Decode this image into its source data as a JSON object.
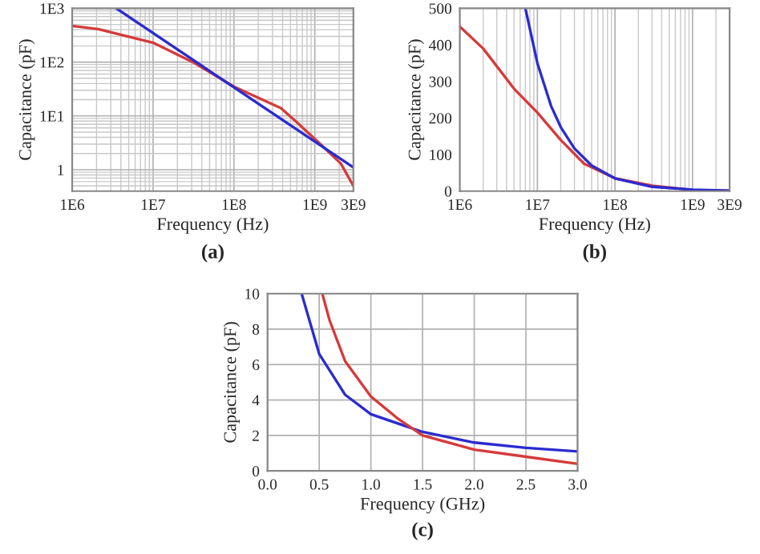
{
  "chart_data": [
    {
      "type": "line",
      "xlabel": "Frequency (Hz)",
      "ylabel": "Capacitance (pF)",
      "annotations": [
        "(a)"
      ],
      "log": "xy",
      "grid": true,
      "xlim": [
        1000000,
        3000000000
      ],
      "xticks": [
        {
          "value": 1000000,
          "label": "1E6"
        },
        {
          "value": 10000000,
          "label": "1E7"
        },
        {
          "value": 100000000,
          "label": "1E8"
        },
        {
          "value": 1000000000,
          "label": "1E9"
        },
        {
          "value": 3000000000,
          "label": "3E9"
        }
      ],
      "ylim": [
        0.4,
        1000
      ],
      "yticks": [
        1,
        {
          "value": 10,
          "label": "1E1"
        },
        {
          "value": 100,
          "label": "1E2"
        },
        {
          "value": 1000,
          "label": "1E3"
        }
      ],
      "series": [
        {
          "color": "#d63a3a",
          "x": [
            1000000,
            2100000,
            10000000,
            33000000,
            100000000,
            380000000,
            600000000,
            1200000000,
            2100000000,
            3000000000
          ],
          "values": [
            470,
            410,
            230,
            95,
            35,
            14,
            7.6,
            2.9,
            1.3,
            0.5
          ]
        },
        {
          "color": "#2b2bcf",
          "x": [
            3500000,
            3000000000
          ],
          "values": [
            1000,
            1.1
          ]
        }
      ]
    },
    {
      "type": "line",
      "xlabel": "Frequency (Hz)",
      "ylabel": "Capacitance (pF)",
      "annotations": [
        "(b)"
      ],
      "log": "x",
      "grid": "x",
      "xlim": [
        1000000,
        3000000000
      ],
      "xticks": [
        {
          "value": 1000000,
          "label": "1E6"
        },
        {
          "value": 10000000,
          "label": "1E7"
        },
        {
          "value": 100000000,
          "label": "1E8"
        },
        {
          "value": 1000000000,
          "label": "1E9"
        },
        {
          "value": 3000000000,
          "label": "3E9"
        }
      ],
      "ylim": [
        0,
        500
      ],
      "yticks": [
        0,
        100,
        200,
        300,
        400,
        500
      ],
      "series": [
        {
          "color": "#d63a3a",
          "x": [
            1000000,
            2000000,
            5000000,
            10000000,
            20000000,
            40000000,
            100000000,
            300000000,
            1000000000,
            3000000000
          ],
          "values": [
            450,
            390,
            280,
            215,
            140,
            75,
            35,
            15,
            3,
            1
          ]
        },
        {
          "color": "#2b2bcf",
          "x": [
            7000000,
            10000000,
            15000000,
            20000000,
            30000000,
            50000000,
            100000000,
            300000000,
            1000000000,
            3000000000
          ],
          "values": [
            500,
            350,
            233,
            175,
            117,
            70,
            35,
            12,
            4,
            1
          ]
        }
      ]
    },
    {
      "type": "line",
      "xlabel": "Frequency (GHz)",
      "ylabel": "Capacitance (pF)",
      "annotations": [
        "(c)"
      ],
      "grid": true,
      "xlim": [
        0,
        3
      ],
      "xticks": [
        {
          "value": 0,
          "label": "0.0"
        },
        0.5,
        {
          "value": 1,
          "label": "1.0"
        },
        1.5,
        {
          "value": 2,
          "label": "2.0"
        },
        2.5,
        {
          "value": 3,
          "label": "3.0"
        }
      ],
      "ylim": [
        0,
        10
      ],
      "yticks": [
        0,
        2,
        4,
        6,
        8,
        10
      ],
      "series": [
        {
          "color": "#2b2bcf",
          "x": [
            0.33,
            0.5,
            0.75,
            1.0,
            1.5,
            2.0,
            2.5,
            3.0
          ],
          "values": [
            10,
            6.6,
            4.3,
            3.2,
            2.2,
            1.6,
            1.3,
            1.1
          ]
        },
        {
          "color": "#d63a3a",
          "x": [
            0.53,
            0.6,
            0.75,
            1.0,
            1.25,
            1.5,
            2.0,
            2.5,
            3.0
          ],
          "values": [
            10,
            8.5,
            6.2,
            4.2,
            3.0,
            2.0,
            1.2,
            0.8,
            0.4
          ]
        }
      ]
    }
  ]
}
